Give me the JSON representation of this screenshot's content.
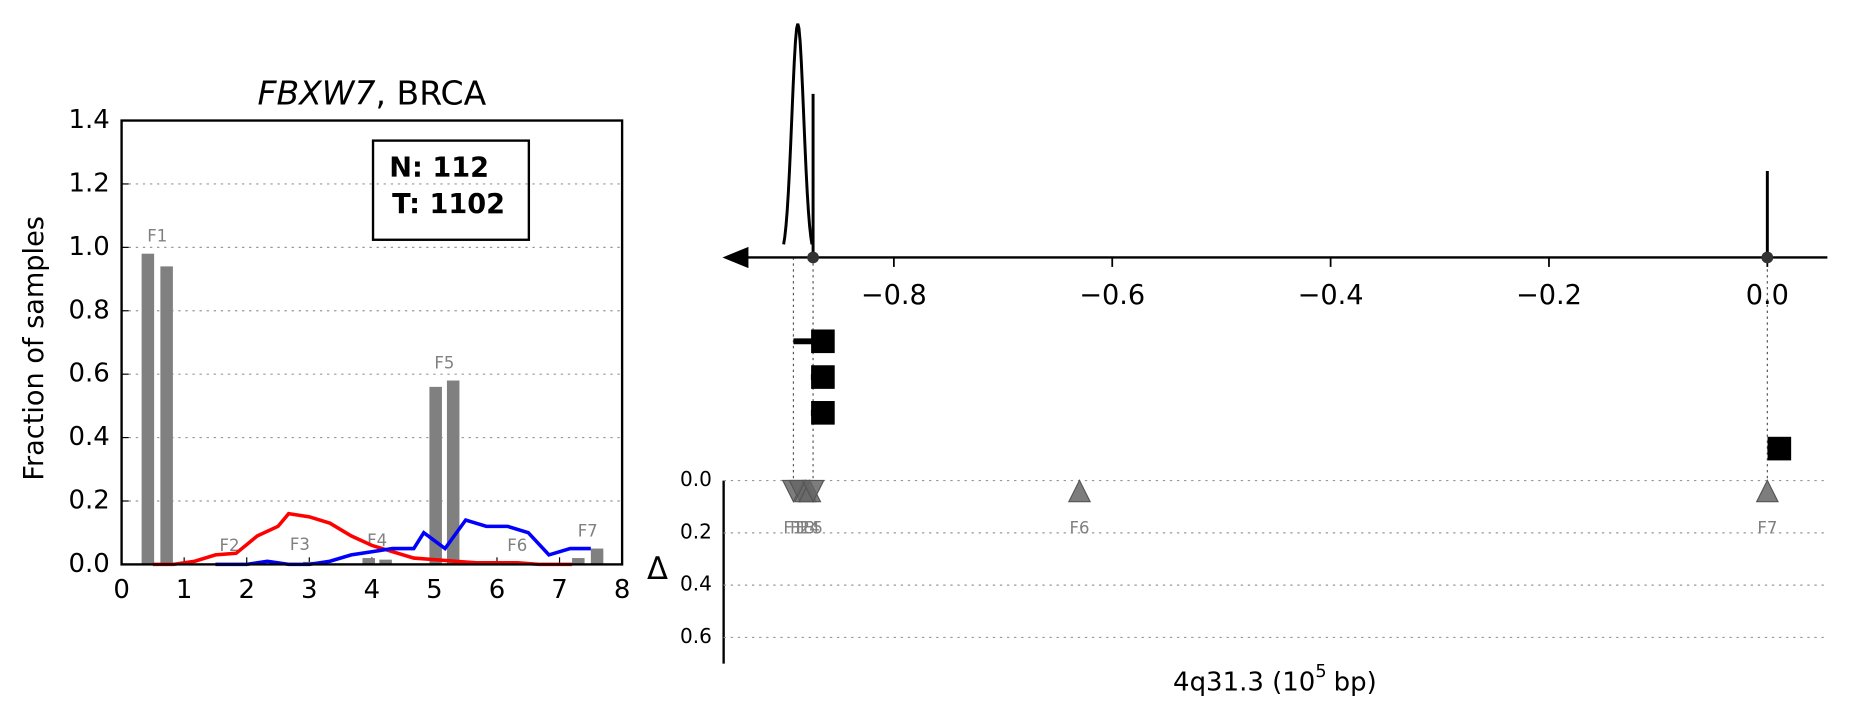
{
  "chart_data": [
    {
      "type": "bar-line",
      "title_gene": "FBXW7",
      "title_suffix": ", BRCA",
      "ylabel": "Fraction of samples",
      "xlim": [
        0,
        8
      ],
      "xticks": [
        0,
        1,
        2,
        3,
        4,
        5,
        6,
        7,
        8
      ],
      "ylim": [
        0,
        1.4
      ],
      "yticks": [
        {
          "value": 0,
          "label": "0.0"
        },
        {
          "value": 0.2,
          "label": "0.2"
        },
        {
          "value": 0.4,
          "label": "0.4"
        },
        {
          "value": 0.6,
          "label": "0.6"
        },
        {
          "value": 0.8,
          "label": "0.8"
        },
        {
          "value": 1.0,
          "label": "1.0"
        },
        {
          "value": 1.2,
          "label": "1.2"
        },
        {
          "value": 1.4,
          "label": "1.4"
        }
      ],
      "grid": true,
      "bar_color": "#808080",
      "groups": [
        {
          "label": "F1",
          "x": [
            0.42,
            0.72
          ],
          "values": [
            0.98,
            0.94
          ]
        },
        {
          "label": "F2",
          "x": [
            1.6,
            1.85
          ],
          "values": [
            0.005,
            0.005
          ]
        },
        {
          "label": "F3",
          "x": [
            2.7,
            3.0
          ],
          "values": [
            0.005,
            0.008
          ]
        },
        {
          "label": "F4",
          "x": [
            3.95,
            4.22
          ],
          "values": [
            0.02,
            0.015
          ]
        },
        {
          "label": "F5",
          "x": [
            5.02,
            5.3
          ],
          "values": [
            0.56,
            0.58
          ]
        },
        {
          "label": "F6",
          "x": [
            6.2,
            6.45
          ],
          "values": [
            0.005,
            0.005
          ]
        },
        {
          "label": "F7",
          "x": [
            7.3,
            7.6
          ],
          "values": [
            0.02,
            0.05
          ]
        }
      ],
      "series": [
        {
          "color": "#ff0000",
          "x": [
            0.5,
            0.83,
            1.17,
            1.5,
            1.83,
            2.17,
            2.5,
            2.67,
            3.0,
            3.33,
            3.67,
            4.0,
            4.33,
            4.67,
            5.0,
            5.33,
            5.67,
            6.0,
            6.33,
            6.67,
            7.0,
            7.2
          ],
          "values": [
            0,
            0,
            0.01,
            0.03,
            0.035,
            0.09,
            0.12,
            0.16,
            0.15,
            0.13,
            0.09,
            0.06,
            0.04,
            0.02,
            0.015,
            0.01,
            0.005,
            0.005,
            0.005,
            0,
            0,
            0
          ]
        },
        {
          "color": "#0000ff",
          "x": [
            1.5,
            2.0,
            2.33,
            2.67,
            3.0,
            3.33,
            3.67,
            4.0,
            4.33,
            4.67,
            4.83,
            5.17,
            5.5,
            5.83,
            6.17,
            6.5,
            6.83,
            7.17,
            7.5
          ],
          "values": [
            0,
            0,
            0.01,
            0,
            0,
            0.01,
            0.03,
            0.04,
            0.05,
            0.05,
            0.1,
            0.05,
            0.14,
            0.12,
            0.12,
            0.1,
            0.03,
            0.05,
            0.05
          ]
        }
      ],
      "annotation": [
        "N: 112",
        "T: 1102"
      ]
    },
    {
      "type": "feature-map",
      "xlim": [
        -0.957,
        0.055
      ],
      "xticks": [
        {
          "value": -0.8,
          "label": "−0.8"
        },
        {
          "value": -0.6,
          "label": "−0.6"
        },
        {
          "value": -0.4,
          "label": "−0.4"
        },
        {
          "value": -0.2,
          "label": "−0.2"
        },
        {
          "value": 0.0,
          "label": "0.0"
        }
      ],
      "peaks": {
        "x": [
          -0.888,
          -0.874,
          0.0
        ],
        "values": [
          1.0,
          0.7,
          0.37
        ]
      },
      "axis_dots": [
        -0.874,
        0.0
      ],
      "squares": {
        "x": [
          -0.865,
          -0.865,
          -0.865,
          0.011
        ],
        "xstart": [
          -0.892,
          -0.876,
          -0.876,
          0.0
        ]
      },
      "delta": {
        "ylabel": "Δ",
        "ylim": [
          0,
          0.7
        ],
        "yticks": [
          {
            "value": 0,
            "label": "0.0"
          },
          {
            "value": 0.2,
            "label": "0.2"
          },
          {
            "value": 0.4,
            "label": "0.4"
          },
          {
            "value": 0.6,
            "label": "0.6"
          }
        ],
        "features": [
          {
            "label": "F1",
            "x": -0.892,
            "delta": 0.04,
            "marker": "v"
          },
          {
            "label": "F2",
            "x": -0.886,
            "delta": 0.04,
            "marker": "v"
          },
          {
            "label": "F3",
            "x": -0.881,
            "delta": 0.04,
            "marker": "^"
          },
          {
            "label": "F4",
            "x": -0.877,
            "delta": 0.04,
            "marker": "^"
          },
          {
            "label": "F5",
            "x": -0.874,
            "delta": 0.04,
            "marker": "v"
          },
          {
            "label": "F6",
            "x": -0.63,
            "delta": 0.04,
            "marker": "^"
          },
          {
            "label": "F7",
            "x": 0.0,
            "delta": 0.04,
            "marker": "^"
          }
        ]
      },
      "xlabel": [
        "4q31.3 (10",
        "5",
        "bp)"
      ]
    }
  ]
}
